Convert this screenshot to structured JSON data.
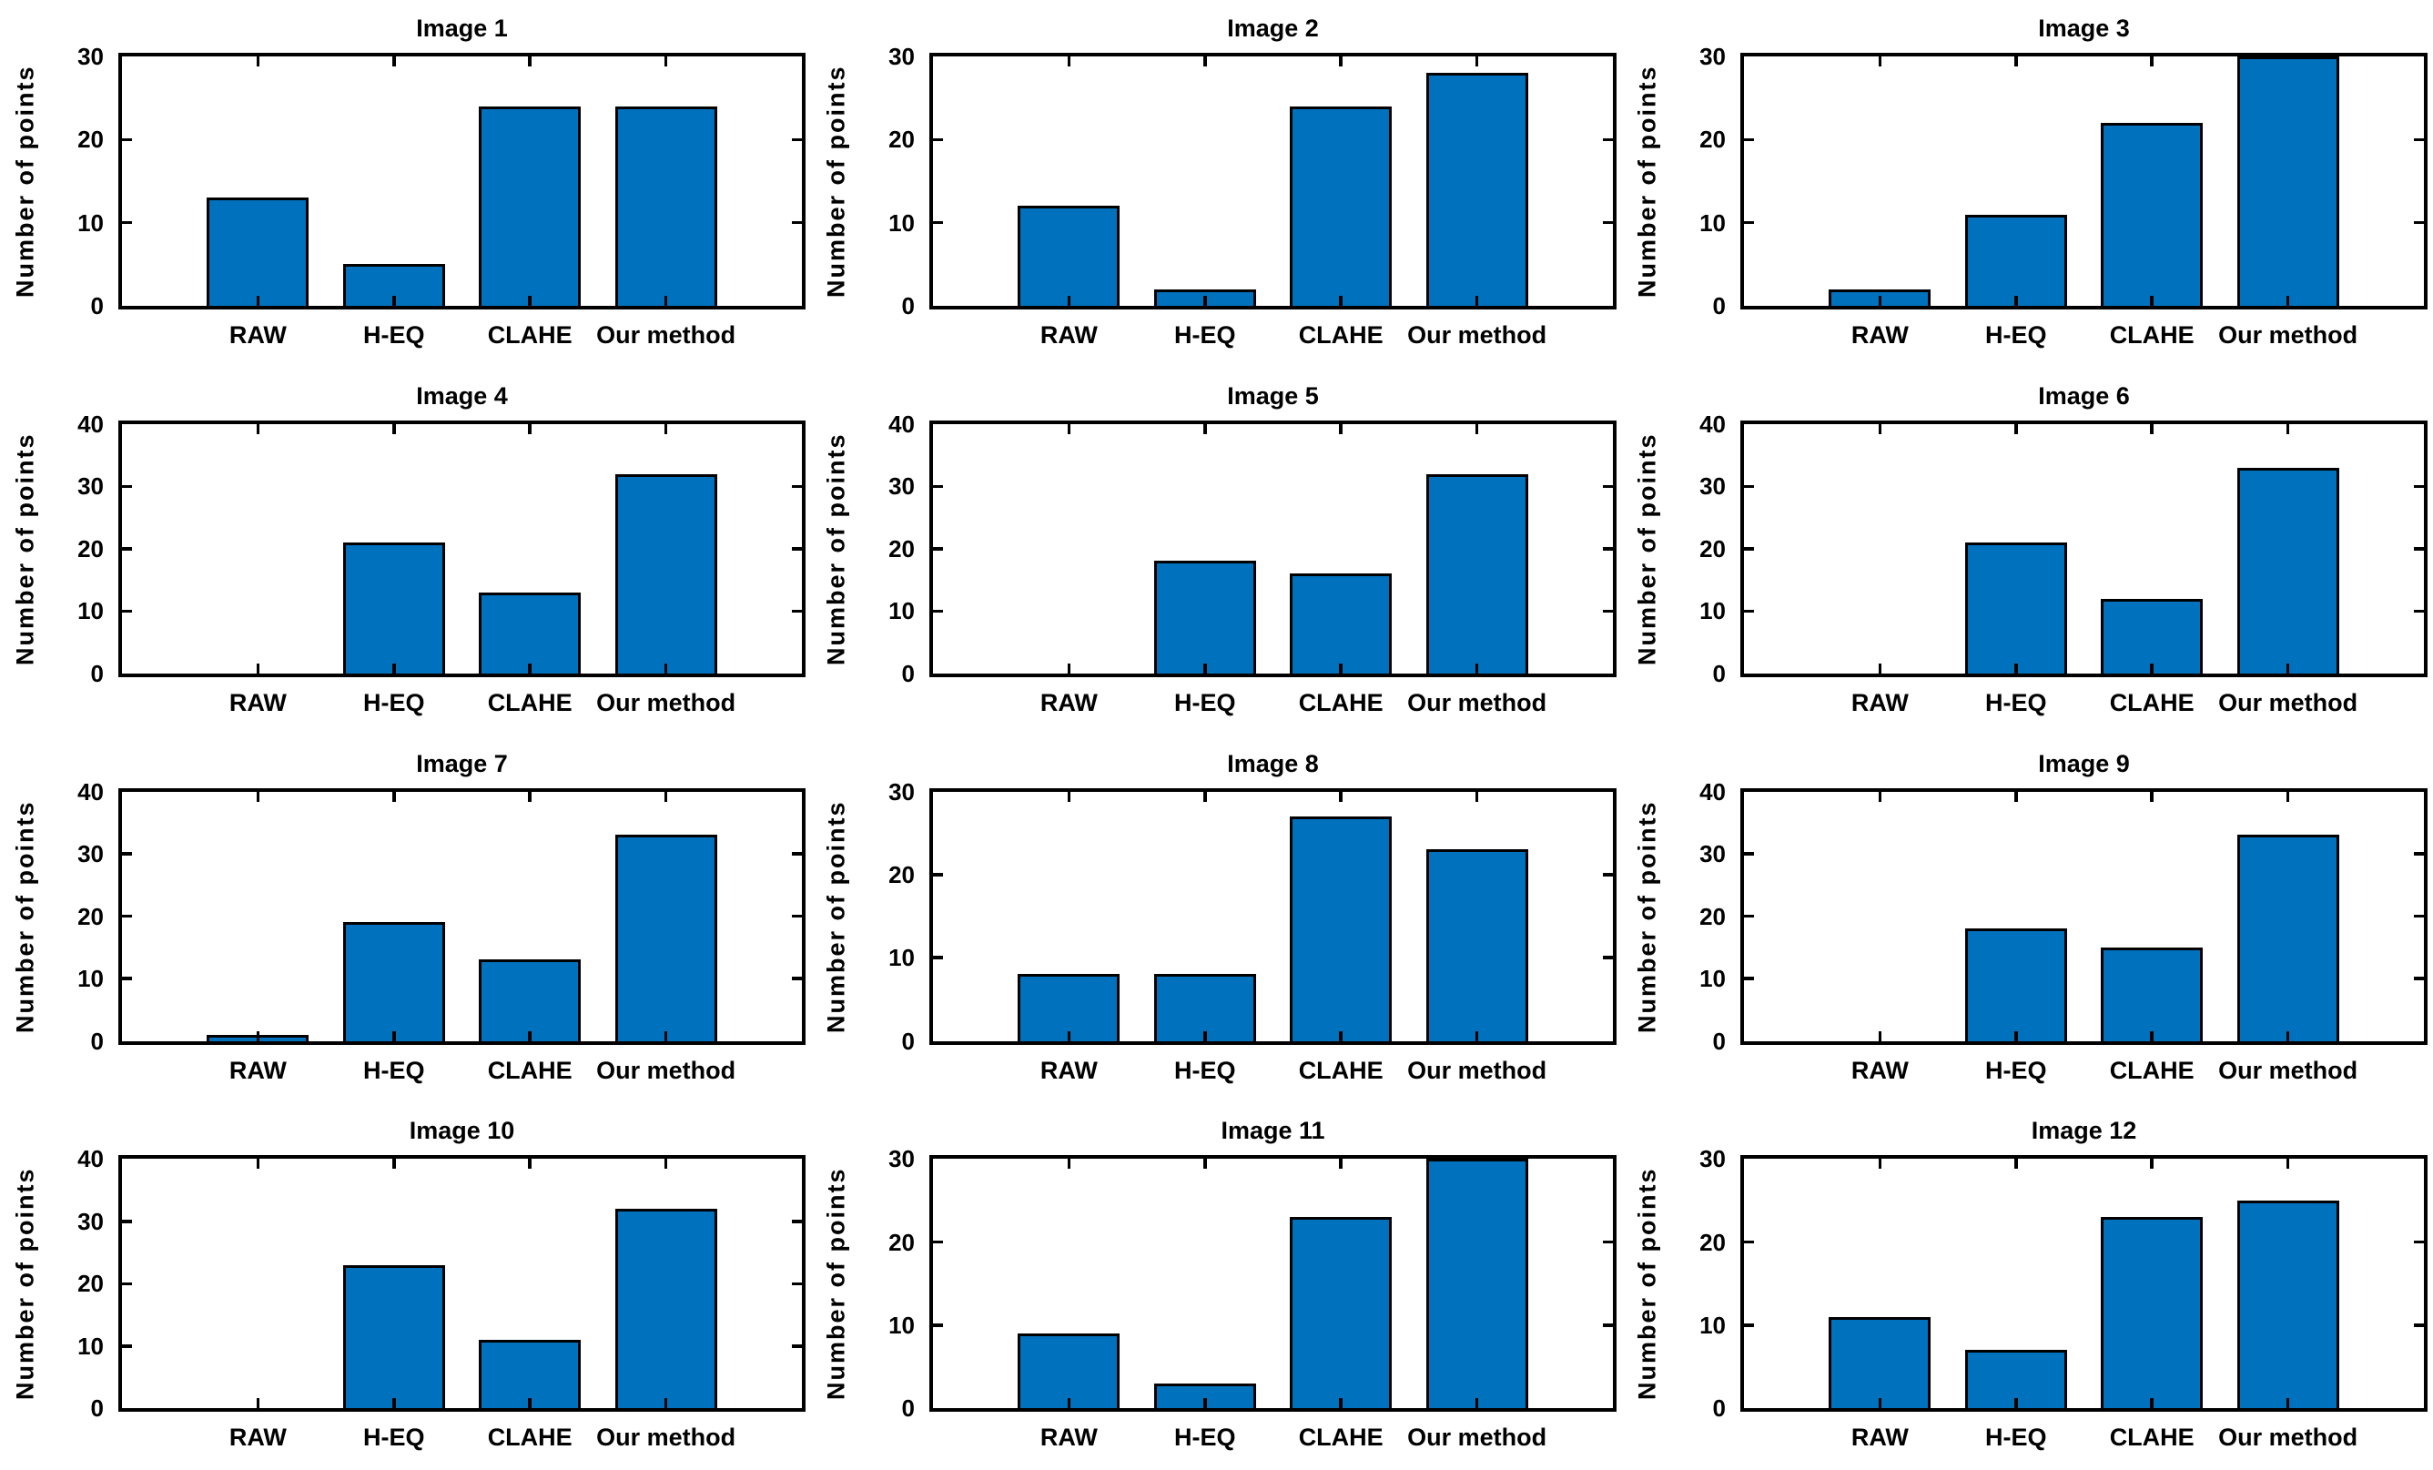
{
  "figure": {
    "ylabel": "Number of points",
    "categories": [
      "RAW",
      "H-EQ",
      "CLAHE",
      "Our method"
    ],
    "bar_fill_color": "#0072BD",
    "bar_edge_color": "#000000",
    "axis_color": "#000000",
    "text_color": "#000000",
    "background_color": "#ffffff"
  },
  "chart_data": [
    {
      "type": "bar",
      "title": "Image 1",
      "ylabel": "Number of points",
      "categories": [
        "RAW",
        "H-EQ",
        "CLAHE",
        "Our method"
      ],
      "values": [
        13,
        5,
        24,
        24
      ],
      "ylim": [
        0,
        30
      ],
      "yticks": [
        0,
        10,
        20,
        30
      ],
      "grid": false,
      "legend": false
    },
    {
      "type": "bar",
      "title": "Image 2",
      "ylabel": "Number of points",
      "categories": [
        "RAW",
        "H-EQ",
        "CLAHE",
        "Our method"
      ],
      "values": [
        12,
        2,
        24,
        28
      ],
      "ylim": [
        0,
        30
      ],
      "yticks": [
        0,
        10,
        20,
        30
      ],
      "grid": false,
      "legend": false
    },
    {
      "type": "bar",
      "title": "Image 3",
      "ylabel": "Number of points",
      "categories": [
        "RAW",
        "H-EQ",
        "CLAHE",
        "Our method"
      ],
      "values": [
        2,
        11,
        22,
        31
      ],
      "ylim": [
        0,
        30
      ],
      "yticks": [
        0,
        10,
        20,
        30
      ],
      "grid": false,
      "legend": false,
      "note": "last bar clipped at axis top"
    },
    {
      "type": "bar",
      "title": "Image 4",
      "ylabel": "Number of points",
      "categories": [
        "RAW",
        "H-EQ",
        "CLAHE",
        "Our method"
      ],
      "values": [
        0,
        21,
        13,
        32
      ],
      "ylim": [
        0,
        40
      ],
      "yticks": [
        0,
        10,
        20,
        30,
        40
      ],
      "grid": false,
      "legend": false
    },
    {
      "type": "bar",
      "title": "Image 5",
      "ylabel": "Number of points",
      "categories": [
        "RAW",
        "H-EQ",
        "CLAHE",
        "Our method"
      ],
      "values": [
        0,
        18,
        16,
        32
      ],
      "ylim": [
        0,
        40
      ],
      "yticks": [
        0,
        10,
        20,
        30,
        40
      ],
      "grid": false,
      "legend": false
    },
    {
      "type": "bar",
      "title": "Image 6",
      "ylabel": "Number of points",
      "categories": [
        "RAW",
        "H-EQ",
        "CLAHE",
        "Our method"
      ],
      "values": [
        0,
        21,
        12,
        33
      ],
      "ylim": [
        0,
        40
      ],
      "yticks": [
        0,
        10,
        20,
        30,
        40
      ],
      "grid": false,
      "legend": false
    },
    {
      "type": "bar",
      "title": "Image 7",
      "ylabel": "Number of points",
      "categories": [
        "RAW",
        "H-EQ",
        "CLAHE",
        "Our method"
      ],
      "values": [
        1,
        19,
        13,
        33
      ],
      "ylim": [
        0,
        40
      ],
      "yticks": [
        0,
        10,
        20,
        30,
        40
      ],
      "grid": false,
      "legend": false
    },
    {
      "type": "bar",
      "title": "Image 8",
      "ylabel": "Number of points",
      "categories": [
        "RAW",
        "H-EQ",
        "CLAHE",
        "Our method"
      ],
      "values": [
        8,
        8,
        27,
        23
      ],
      "ylim": [
        0,
        30
      ],
      "yticks": [
        0,
        10,
        20,
        30
      ],
      "grid": false,
      "legend": false
    },
    {
      "type": "bar",
      "title": "Image 9",
      "ylabel": "Number of points",
      "categories": [
        "RAW",
        "H-EQ",
        "CLAHE",
        "Our method"
      ],
      "values": [
        0,
        18,
        15,
        33
      ],
      "ylim": [
        0,
        40
      ],
      "yticks": [
        0,
        10,
        20,
        30,
        40
      ],
      "grid": false,
      "legend": false
    },
    {
      "type": "bar",
      "title": "Image 10",
      "ylabel": "Number of points",
      "categories": [
        "RAW",
        "H-EQ",
        "CLAHE",
        "Our method"
      ],
      "values": [
        0,
        23,
        11,
        32
      ],
      "ylim": [
        0,
        40
      ],
      "yticks": [
        0,
        10,
        20,
        30,
        40
      ],
      "grid": false,
      "legend": false
    },
    {
      "type": "bar",
      "title": "Image 11",
      "ylabel": "Number of points",
      "categories": [
        "RAW",
        "H-EQ",
        "CLAHE",
        "Our method"
      ],
      "values": [
        9,
        3,
        23,
        31
      ],
      "ylim": [
        0,
        30
      ],
      "yticks": [
        0,
        10,
        20,
        30
      ],
      "grid": false,
      "legend": false,
      "note": "last bar clipped at axis top"
    },
    {
      "type": "bar",
      "title": "Image 12",
      "ylabel": "Number of points",
      "categories": [
        "RAW",
        "H-EQ",
        "CLAHE",
        "Our method"
      ],
      "values": [
        11,
        7,
        23,
        25
      ],
      "ylim": [
        0,
        30
      ],
      "yticks": [
        0,
        10,
        20,
        30
      ],
      "grid": false,
      "legend": false
    }
  ]
}
